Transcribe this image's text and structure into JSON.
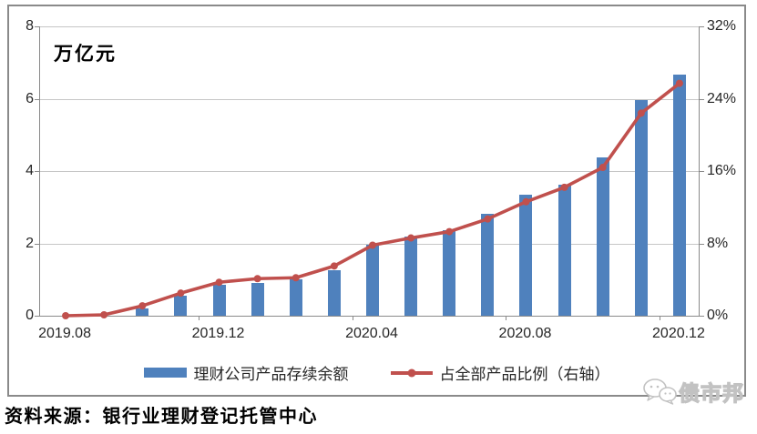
{
  "chart_data": {
    "type": "bar",
    "subtype": "combo-bar-line-dual-axis",
    "title": "",
    "unit_label": "万亿元",
    "categories": [
      "2019.08",
      "2019.09",
      "2019.10",
      "2019.11",
      "2019.12",
      "2020.01",
      "2020.02",
      "2020.03",
      "2020.04",
      "2020.05",
      "2020.06",
      "2020.07",
      "2020.08",
      "2020.09",
      "2020.10",
      "2020.11",
      "2020.12"
    ],
    "x_axis_labeled_ticks": [
      "2019.08",
      "2019.12",
      "2020.04",
      "2020.08",
      "2020.12"
    ],
    "label_every": 4,
    "series": [
      {
        "name": "理财公司产品存续余额",
        "type": "bar",
        "axis": "left",
        "values": [
          0,
          0,
          0.2,
          0.55,
          0.85,
          0.91,
          1.0,
          1.27,
          1.97,
          2.19,
          2.36,
          2.83,
          3.34,
          3.63,
          4.39,
          5.96,
          6.67
        ]
      },
      {
        "name": "占全部产品比例（右轴）",
        "type": "line",
        "axis": "right",
        "values": [
          0,
          0.1,
          1.1,
          2.5,
          3.7,
          4.1,
          4.2,
          5.5,
          7.8,
          8.6,
          9.3,
          10.7,
          12.6,
          14.2,
          16.4,
          22.4,
          25.7
        ]
      }
    ],
    "left_axis": {
      "min": 0,
      "max": 8,
      "tick_labels": [
        "8",
        "6",
        "4",
        "2",
        "0"
      ]
    },
    "right_axis": {
      "min": 0,
      "max": 32,
      "tick_labels": [
        "32%",
        "24%",
        "16%",
        "8%",
        "0%"
      ]
    },
    "grid": true,
    "legend_position": "bottom"
  },
  "colors": {
    "bar": "#4F81BD",
    "line": "#C0504D",
    "grid": "#c6c6c6",
    "axis": "#8a8a8a",
    "watermark": "#c2c2c2"
  },
  "watermark": {
    "icon": "wechat-icon",
    "text": "债市邦"
  },
  "source": {
    "text": "资料来源：银行业理财登记托管中心"
  }
}
